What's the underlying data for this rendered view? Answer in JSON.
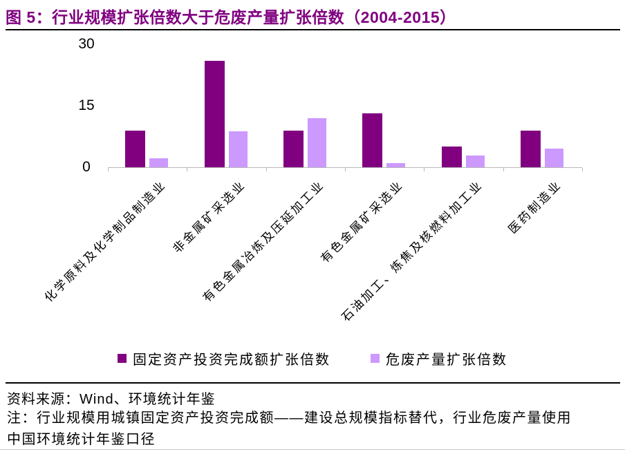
{
  "accent_color": "#800080",
  "header": {
    "title": "图 5：行业规模扩张倍数大于危废产量扩张倍数（2004-2015）"
  },
  "chart_data": {
    "type": "bar",
    "title": "行业规模扩张倍数大于危废产量扩张倍数（2004-2015）",
    "categories": [
      "化学原料及化学制品制造业",
      "非金属矿采选业",
      "有色金属冶炼及压延加工业",
      "有色金属矿采选业",
      "石油加工、炼焦及核燃料加工业",
      "医药制造业"
    ],
    "series": [
      {
        "name": "固定资产投资完成额扩张倍数",
        "color": "#800080",
        "values": [
          9,
          26,
          9,
          13.2,
          5,
          9
        ]
      },
      {
        "name": "危废产量扩张倍数",
        "color": "#CC99FF",
        "values": [
          2.2,
          8.8,
          12,
          1,
          2.8,
          4.5
        ]
      }
    ],
    "xlabel": "",
    "ylabel": "",
    "ylim": [
      0,
      30
    ],
    "yticks": [
      0,
      15,
      30
    ],
    "grid": false,
    "legend_position": "bottom"
  },
  "footer": {
    "source": "资料来源：Wind、环境统计年鉴",
    "note": "注：行业规模用城镇固定资产投资完成额——建设总规模指标替代，行业危废产量使用中国环境统计年鉴口径"
  }
}
